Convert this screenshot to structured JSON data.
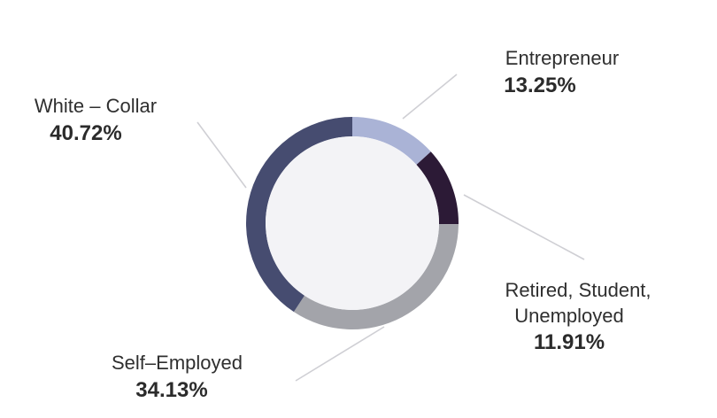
{
  "chart_data": {
    "type": "pie",
    "title": "",
    "slices": [
      {
        "label": "Entrepreneur",
        "value": 13.25,
        "value_label": "13.25%",
        "color": "#aab3d6"
      },
      {
        "label": "Retired, Student,",
        "label_line2": "Unemployed",
        "value": 11.91,
        "value_label": "11.91%",
        "color": "#2c1a36"
      },
      {
        "label": "Self–Employed",
        "value": 34.13,
        "value_label": "34.13%",
        "color": "#a3a4aa"
      },
      {
        "label": "White – Collar",
        "value": 40.72,
        "value_label": "40.72%",
        "color": "#464c70"
      }
    ],
    "center_color": "#f3f3f6",
    "leader_color": "#cfcfd4"
  }
}
